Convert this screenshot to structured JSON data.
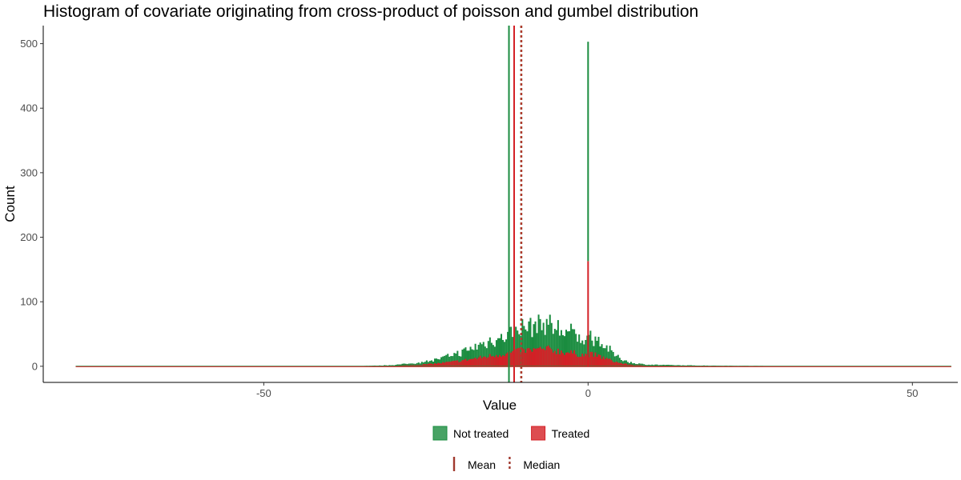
{
  "chart_data": {
    "type": "bar",
    "subtype": "histogram",
    "title": "Histogram of covariate originating from cross-product of poisson and gumbel distribution",
    "xlabel": "Value",
    "ylabel": "Count",
    "xlim": [
      -84,
      57
    ],
    "ylim": [
      -25,
      528
    ],
    "x_ticks": [
      -50,
      0,
      50
    ],
    "x_tick_labels": [
      "-50",
      "0",
      "50"
    ],
    "y_ticks": [
      0,
      100,
      200,
      300,
      400,
      500
    ],
    "y_tick_labels": [
      "0",
      "100",
      "200",
      "300",
      "400",
      "500"
    ],
    "grid": false,
    "stacked": true,
    "series": [
      {
        "name": "Not treated",
        "color": "#1a8c3f"
      },
      {
        "name": "Treated",
        "color": "#d42026"
      }
    ],
    "histogram_range": [
      -79,
      56
    ],
    "spikes": [
      {
        "series": "Not treated",
        "x": 0,
        "count": 340
      },
      {
        "series": "Treated",
        "x": 0,
        "count": 163
      }
    ],
    "reference_lines": [
      {
        "series": "Not treated",
        "stat": "Mean",
        "x": -12.2,
        "color": "#1a8c3f",
        "style": "solid"
      },
      {
        "series": "Treated",
        "stat": "Mean",
        "x": -11.4,
        "color": "#d42026",
        "style": "solid"
      },
      {
        "series": "Not treated",
        "stat": "Median",
        "x": -10.3,
        "color": "#1a8c3f",
        "style": "dotted"
      },
      {
        "series": "Treated",
        "stat": "Median",
        "x": -10.3,
        "color": "#b03a2e",
        "style": "dotted"
      }
    ],
    "legend": {
      "placement": "bottom",
      "fill_entries": [
        {
          "label": "Not treated",
          "color": "#1a8c3f"
        },
        {
          "label": "Treated",
          "color": "#d42026"
        }
      ],
      "line_entries": [
        {
          "label": "Mean",
          "style": "solid",
          "color": "#a0392e"
        },
        {
          "label": "Median",
          "style": "dotted",
          "color": "#a0392e"
        }
      ]
    }
  }
}
